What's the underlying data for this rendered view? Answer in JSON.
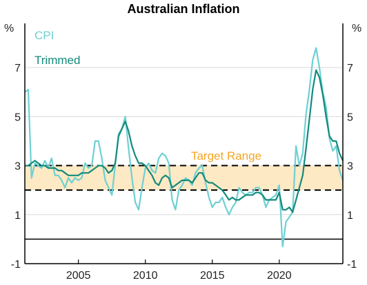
{
  "chart_data": {
    "type": "line",
    "title": "Australian Inflation",
    "unit_left": "%",
    "unit_right": "%",
    "xlim": [
      2001.0,
      2024.75
    ],
    "ylim": [
      -1,
      8.8
    ],
    "x_ticks": [
      2005,
      2010,
      2015,
      2020
    ],
    "x_tick_labels": [
      "2005",
      "2010",
      "2015",
      "2020"
    ],
    "y_ticks": [
      -1,
      1,
      3,
      5,
      7
    ],
    "y_tick_labels": [
      "-1",
      "1",
      "3",
      "5",
      "7"
    ],
    "grid": true,
    "zero_line": 0,
    "target_band": {
      "label": "Target Range",
      "low": 2,
      "high": 3,
      "color": "#fde9c4",
      "label_color": "#f5a623"
    },
    "legend_placement": "top-left",
    "series": [
      {
        "name": "CPI",
        "color": "#6dd0d3",
        "x": [
          2001.0,
          2001.25,
          2001.5,
          2001.75,
          2002.0,
          2002.25,
          2002.5,
          2002.75,
          2003.0,
          2003.25,
          2003.5,
          2003.75,
          2004.0,
          2004.25,
          2004.5,
          2004.75,
          2005.0,
          2005.25,
          2005.5,
          2005.75,
          2006.0,
          2006.25,
          2006.5,
          2006.75,
          2007.0,
          2007.25,
          2007.5,
          2007.75,
          2008.0,
          2008.25,
          2008.5,
          2008.75,
          2009.0,
          2009.25,
          2009.5,
          2009.75,
          2010.0,
          2010.25,
          2010.5,
          2010.75,
          2011.0,
          2011.25,
          2011.5,
          2011.75,
          2012.0,
          2012.25,
          2012.5,
          2012.75,
          2013.0,
          2013.25,
          2013.5,
          2013.75,
          2014.0,
          2014.25,
          2014.5,
          2014.75,
          2015.0,
          2015.25,
          2015.5,
          2015.75,
          2016.0,
          2016.25,
          2016.5,
          2016.75,
          2017.0,
          2017.25,
          2017.5,
          2017.75,
          2018.0,
          2018.25,
          2018.5,
          2018.75,
          2019.0,
          2019.25,
          2019.5,
          2019.75,
          2020.0,
          2020.25,
          2020.5,
          2020.75,
          2021.0,
          2021.25,
          2021.5,
          2021.75,
          2022.0,
          2022.25,
          2022.5,
          2022.75,
          2023.0,
          2023.25,
          2023.5,
          2023.75,
          2024.0,
          2024.25,
          2024.5,
          2024.75
        ],
        "values": [
          6.0,
          6.1,
          2.5,
          3.1,
          3.0,
          2.9,
          3.2,
          2.9,
          3.3,
          2.6,
          2.6,
          2.4,
          2.1,
          2.5,
          2.3,
          2.5,
          2.4,
          2.5,
          3.1,
          2.9,
          3.0,
          4.0,
          4.0,
          3.3,
          2.4,
          2.1,
          1.8,
          3.0,
          4.3,
          4.5,
          5.0,
          3.7,
          2.5,
          1.5,
          1.2,
          2.1,
          2.9,
          3.1,
          2.8,
          2.7,
          3.3,
          3.5,
          3.4,
          3.1,
          1.6,
          1.2,
          2.0,
          2.2,
          2.5,
          2.4,
          2.2,
          2.7,
          2.9,
          3.0,
          2.3,
          1.7,
          1.3,
          1.5,
          1.5,
          1.7,
          1.3,
          1.0,
          1.3,
          1.5,
          2.1,
          1.9,
          1.8,
          1.9,
          1.9,
          2.1,
          2.1,
          1.8,
          1.3,
          1.6,
          1.7,
          1.8,
          2.2,
          -0.3,
          0.7,
          0.9,
          1.1,
          3.8,
          3.0,
          3.5,
          5.1,
          6.1,
          7.3,
          7.8,
          7.0,
          6.0,
          5.4,
          4.1,
          3.6,
          3.8,
          2.8,
          2.4
        ]
      },
      {
        "name": "Trimmed",
        "color": "#138a7b",
        "x": [
          2001.0,
          2001.25,
          2001.5,
          2001.75,
          2002.0,
          2002.25,
          2002.5,
          2002.75,
          2003.0,
          2003.25,
          2003.5,
          2003.75,
          2004.0,
          2004.25,
          2004.5,
          2004.75,
          2005.0,
          2005.25,
          2005.5,
          2005.75,
          2006.0,
          2006.25,
          2006.5,
          2006.75,
          2007.0,
          2007.25,
          2007.5,
          2007.75,
          2008.0,
          2008.25,
          2008.5,
          2008.75,
          2009.0,
          2009.25,
          2009.5,
          2009.75,
          2010.0,
          2010.25,
          2010.5,
          2010.75,
          2011.0,
          2011.25,
          2011.5,
          2011.75,
          2012.0,
          2012.25,
          2012.5,
          2012.75,
          2013.0,
          2013.25,
          2013.5,
          2013.75,
          2014.0,
          2014.25,
          2014.5,
          2014.75,
          2015.0,
          2015.25,
          2015.5,
          2015.75,
          2016.0,
          2016.25,
          2016.5,
          2016.75,
          2017.0,
          2017.25,
          2017.5,
          2017.75,
          2018.0,
          2018.25,
          2018.5,
          2018.75,
          2019.0,
          2019.25,
          2019.5,
          2019.75,
          2020.0,
          2020.25,
          2020.5,
          2020.75,
          2021.0,
          2021.25,
          2021.5,
          2021.75,
          2022.0,
          2022.25,
          2022.5,
          2022.75,
          2023.0,
          2023.25,
          2023.5,
          2023.75,
          2024.0,
          2024.25,
          2024.5,
          2024.75
        ],
        "values": [
          3.0,
          3.0,
          3.1,
          3.2,
          3.1,
          3.0,
          3.0,
          2.9,
          2.9,
          2.9,
          2.8,
          2.8,
          2.7,
          2.6,
          2.6,
          2.6,
          2.6,
          2.7,
          2.7,
          2.7,
          2.8,
          2.9,
          3.0,
          3.0,
          2.9,
          2.7,
          2.8,
          3.1,
          4.2,
          4.5,
          4.8,
          4.4,
          3.8,
          3.4,
          3.1,
          3.1,
          3.0,
          2.8,
          2.6,
          2.3,
          2.2,
          2.5,
          2.6,
          2.5,
          2.1,
          2.2,
          2.3,
          2.4,
          2.4,
          2.4,
          2.3,
          2.5,
          2.7,
          2.7,
          2.4,
          2.3,
          2.3,
          2.2,
          2.1,
          2.0,
          1.8,
          1.6,
          1.7,
          1.6,
          1.6,
          1.7,
          1.8,
          1.8,
          1.8,
          1.9,
          1.9,
          1.8,
          1.6,
          1.6,
          1.6,
          1.6,
          1.9,
          1.2,
          1.2,
          1.3,
          1.1,
          1.6,
          2.1,
          2.6,
          3.7,
          4.9,
          6.1,
          6.9,
          6.6,
          5.9,
          5.0,
          4.2,
          4.0,
          4.0,
          3.5,
          3.2
        ]
      }
    ]
  }
}
